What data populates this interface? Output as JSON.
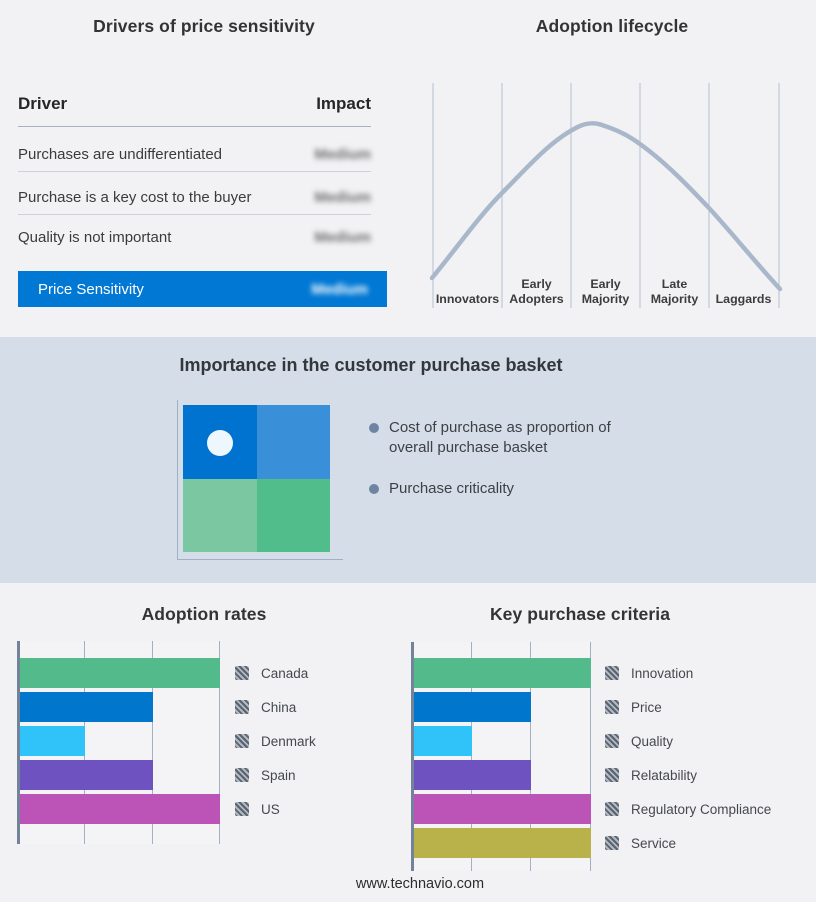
{
  "drivers_panel": {
    "title": "Drivers of price sensitivity",
    "columns": {
      "driver": "Driver",
      "impact": "Impact"
    },
    "rows": [
      {
        "driver": "Purchases are undifferentiated",
        "impact": "Medium"
      },
      {
        "driver": "Purchase is a key cost to the buyer",
        "impact": "Medium"
      },
      {
        "driver": "Quality is not important",
        "impact": "Medium"
      }
    ],
    "highlight_row": {
      "driver": "Price Sensitivity",
      "impact": "Medium"
    },
    "highlight_color": "#0078d4",
    "impact_values_blurred": true
  },
  "adoption_lifecycle": {
    "title": "Adoption lifecycle",
    "curve_color": "#a9b7cb",
    "gridline_color": "#b4c0cf"
  },
  "purchase_basket": {
    "title": "Importance in the customer purchase basket",
    "bullets": [
      "Cost of purchase as proportion of overall purchase basket",
      "Purchase criticality"
    ],
    "quadrant_colors": {
      "top_left": "#0073d1",
      "top_right": "#3a8fd9",
      "bottom_left": "#7ac7a2",
      "bottom_right": "#50bd8b"
    },
    "band_background": "#d5dde8"
  },
  "footer": {
    "url": "www.technavio.com"
  },
  "chart_data": [
    {
      "type": "line",
      "title": "Adoption lifecycle",
      "x_categories": [
        "Innovators",
        "Early Adopters",
        "Early Majority",
        "Late Majority",
        "Laggards"
      ],
      "shape": "bell curve peaking over Early Majority",
      "y_values_relative": [
        0.08,
        0.55,
        1.0,
        0.62,
        0.05
      ],
      "line_color": "#a9b7cb",
      "grid": "vertical category separators",
      "legend": "none"
    },
    {
      "type": "bar",
      "title": "Adoption rates",
      "orientation": "horizontal",
      "categories": [
        "Canada",
        "China",
        "Denmark",
        "Spain",
        "US"
      ],
      "values": [
        3,
        2,
        1,
        2,
        3
      ],
      "xlim": [
        0,
        3
      ],
      "colors": [
        "#53ba8c",
        "#0077cd",
        "#30c3fa",
        "#6e52c0",
        "#bc53b6"
      ],
      "grid": "vertical",
      "legend_position": "right",
      "legend_marker": "hatched-square"
    },
    {
      "type": "bar",
      "title": "Key purchase criteria",
      "orientation": "horizontal",
      "categories": [
        "Innovation",
        "Price",
        "Quality",
        "Relatability",
        "Regulatory Compliance",
        "Service"
      ],
      "values": [
        3,
        2,
        1,
        2,
        3,
        3
      ],
      "xlim": [
        0,
        3
      ],
      "colors": [
        "#53ba8c",
        "#0077cd",
        "#30c3fa",
        "#6e52c0",
        "#bc53b6",
        "#b9b24b"
      ],
      "grid": "vertical",
      "legend_position": "right",
      "legend_marker": "hatched-square"
    }
  ]
}
